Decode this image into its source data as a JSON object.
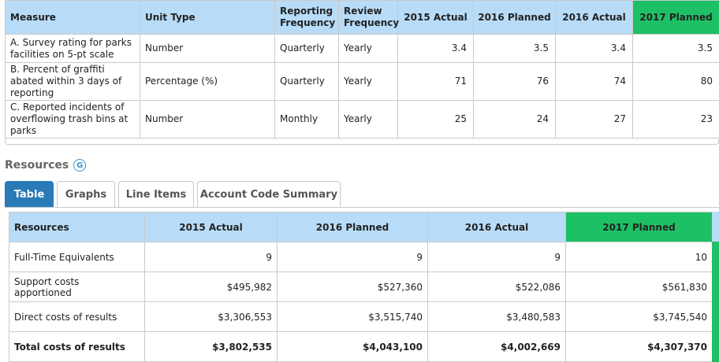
{
  "measures": {
    "headers": [
      "Measure",
      "Unit Type",
      "Reporting Frequency",
      "Review Frequency",
      "2015 Actual",
      "2016 Planned",
      "2016 Actual",
      "2017 Planned"
    ],
    "rows": [
      [
        "A. Survey rating for parks facilities on 5-pt scale",
        "Number",
        "Quarterly",
        "Yearly",
        "3.4",
        "3.5",
        "3.4",
        "3.5"
      ],
      [
        "B. Percent of graffiti abated within 3 days of reporting",
        "Percentage (%)",
        "Quarterly",
        "Yearly",
        "71",
        "76",
        "74",
        "80"
      ],
      [
        "C. Reported incidents of overflowing trash bins at parks",
        "Number",
        "Monthly",
        "Yearly",
        "25",
        "24",
        "27",
        "23"
      ]
    ]
  },
  "resources": {
    "title": "Resources",
    "icon": "info-g-icon",
    "icon_glyph": "G",
    "tabs": [
      "Table",
      "Graphs",
      "Line Items",
      "Account Code Summary"
    ],
    "active_tab": "Table",
    "headers": [
      "Resources",
      "2015 Actual",
      "2016 Planned",
      "2016 Actual",
      "2017 Planned"
    ],
    "rows": [
      [
        "Full-Time Equivalents",
        "9",
        "9",
        "9",
        "10"
      ],
      [
        "Support costs apportioned",
        "$495,982",
        "$527,360",
        "$522,086",
        "$561,830"
      ],
      [
        "Direct costs of results",
        "$3,306,553",
        "$3,515,740",
        "$3,480,583",
        "$3,745,540"
      ],
      [
        "Total costs of results",
        "$3,802,535",
        "$4,043,100",
        "$4,002,669",
        "$4,307,370"
      ]
    ]
  },
  "colors": {
    "header_blue": "#b8dcf7",
    "highlight_green": "#1ec066",
    "active_tab": "#2a7ab8"
  }
}
